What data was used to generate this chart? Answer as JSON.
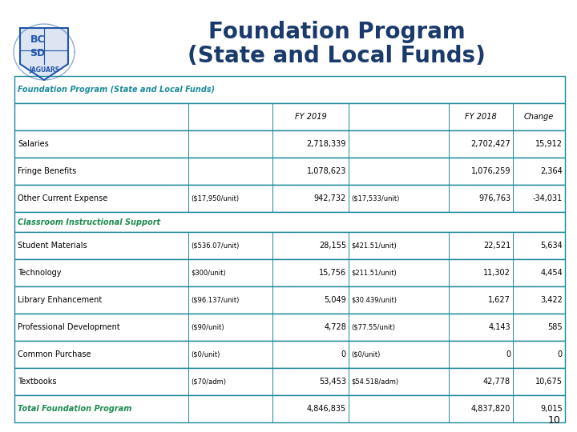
{
  "title_line1": "Foundation Program",
  "title_line2": "(State and Local Funds)",
  "table_header": "Foundation Program (State and Local Funds)",
  "rows": [
    {
      "label": "Salaries",
      "unit19": "",
      "val19": "2,718,339",
      "unit18": "",
      "val18": "2,702,427",
      "change": "15,912",
      "section": false,
      "total": false
    },
    {
      "label": "Fringe Benefits",
      "unit19": "",
      "val19": "1,078,623",
      "unit18": "",
      "val18": "1,076,259",
      "change": "2,364",
      "section": false,
      "total": false
    },
    {
      "label": "Other Current Expense",
      "unit19": "($17,950/unit)",
      "val19": "942,732",
      "unit18": "($17,533/unit)",
      "val18": "976,763",
      "change": "-34,031",
      "section": false,
      "total": false
    },
    {
      "label": "Classroom Instructional Support",
      "unit19": "",
      "val19": "",
      "unit18": "",
      "val18": "",
      "change": "",
      "section": true,
      "total": false
    },
    {
      "label": "Student Materials",
      "unit19": "($536.07/unit)",
      "val19": "28,155",
      "unit18": "$421.51/unit)",
      "val18": "22,521",
      "change": "5,634",
      "section": false,
      "total": false
    },
    {
      "label": "Technology",
      "unit19": "$300/unit)",
      "val19": "15,756",
      "unit18": "$211.51/unit)",
      "val18": "11,302",
      "change": "4,454",
      "section": false,
      "total": false
    },
    {
      "label": "Library Enhancement",
      "unit19": "($96.137/unit)",
      "val19": "5,049",
      "unit18": "$30.439/unit)",
      "val18": "1,627",
      "change": "3,422",
      "section": false,
      "total": false
    },
    {
      "label": "Professional Development",
      "unit19": "($90/unit)",
      "val19": "4,728",
      "unit18": "($77.55/unit)",
      "val18": "4,143",
      "change": "585",
      "section": false,
      "total": false
    },
    {
      "label": "Common Purchase",
      "unit19": "($0/unit)",
      "val19": "0",
      "unit18": "($0/unit)",
      "val18": "0",
      "change": "0",
      "section": false,
      "total": false
    },
    {
      "label": "Textbooks",
      "unit19": "($70/adm)",
      "val19": "53,453",
      "unit18": "$54.518/adm)",
      "val18": "42,778",
      "change": "10,675",
      "section": false,
      "total": false
    },
    {
      "label": "Total Foundation Program",
      "unit19": "",
      "val19": "4,846,835",
      "unit18": "",
      "val18": "4,837,820",
      "change": "9,015",
      "section": false,
      "total": true
    }
  ],
  "page_number": "10",
  "teal_color": "#1B8A9A",
  "section_color": "#1B8A50",
  "total_color": "#1B8A50",
  "title_color": "#1a3a6c"
}
